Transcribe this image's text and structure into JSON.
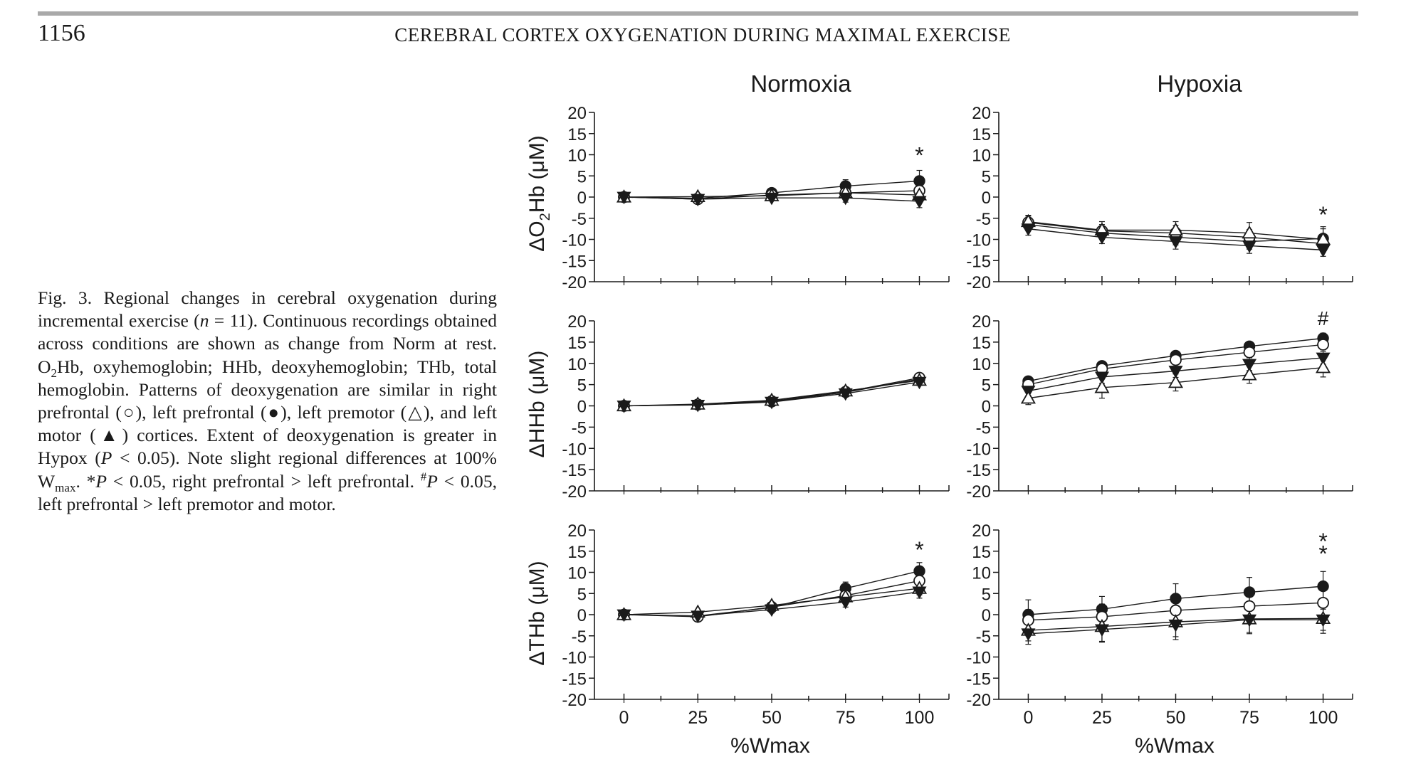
{
  "header": {
    "page_number": "1156",
    "running_title": "CEREBRAL CORTEX OXYGENATION DURING MAXIMAL EXERCISE"
  },
  "caption": {
    "label": "Fig. 3.",
    "text_1": " Regional changes in cerebral oxygenation during incremental exercise (",
    "n_var": "n",
    "text_2": " = 11). Continuous recordings obtained across conditions are shown as change from Norm at rest. O",
    "sub_2": "2",
    "text_3": "Hb, oxyhemoglobin; HHb, deoxyhemoglobin; THb, total hemoglobin. Patterns of deoxygenation are similar in right prefrontal (○), left prefrontal (●), left premotor (△), and left motor (▲) cortices. Extent of deoxygenation is greater in Hypox (",
    "p_var_1": "P",
    "text_4": " < 0.05). Note slight regional differences at 100% W",
    "sub_max": "max",
    "text_5": ". *",
    "p_var_2": "P",
    "text_6": " < 0.05, right prefrontal > left prefrontal. ",
    "sup_hash": "#",
    "p_var_3": "P",
    "text_7": " < 0.05, left prefrontal > left premotor and motor."
  },
  "figure": {
    "column_titles": [
      "Normoxia",
      "Hypoxia"
    ],
    "row_labels": [
      {
        "delta": "Δ",
        "pre": "O",
        "sub": "2",
        "post": "Hb (μM)"
      },
      {
        "delta": "Δ",
        "pre": "HHb (μM)",
        "sub": "",
        "post": ""
      },
      {
        "delta": "Δ",
        "pre": "THb (μM)",
        "sub": "",
        "post": ""
      }
    ],
    "x_axis_label": "%Wmax",
    "series_legend": [
      {
        "name": "right prefrontal",
        "marker": "circle-open"
      },
      {
        "name": "left prefrontal",
        "marker": "circle-filled"
      },
      {
        "name": "left premotor",
        "marker": "triangle-open"
      },
      {
        "name": "left motor",
        "marker": "triangle-filled"
      }
    ]
  },
  "chart_data": [
    {
      "type": "line",
      "panel": "Normoxia ΔO2Hb",
      "title": "Normoxia",
      "xlabel": "",
      "ylabel": "ΔO2Hb (μM)",
      "x": [
        0,
        25,
        50,
        75,
        100
      ],
      "xlim": [
        -10,
        110
      ],
      "ylim": [
        -20,
        20
      ],
      "yticks": [
        20,
        15,
        10,
        5,
        0,
        -5,
        -10,
        -15,
        -20
      ],
      "xticks": [
        0,
        25,
        50,
        75,
        100
      ],
      "annotations": [
        {
          "text": "*",
          "x": 100,
          "y": 10
        }
      ],
      "series": [
        {
          "name": "left prefrontal",
          "marker": "circle-filled",
          "values": [
            0,
            -0.3,
            1.0,
            2.6,
            3.8
          ],
          "err": [
            0.5,
            0.6,
            0.8,
            1.5,
            2.5
          ]
        },
        {
          "name": "right prefrontal",
          "marker": "circle-open",
          "values": [
            0,
            -0.5,
            0.5,
            1.0,
            1.5
          ],
          "err": [
            0.5,
            0.6,
            0.7,
            1.2,
            1.8
          ]
        },
        {
          "name": "left premotor",
          "marker": "triangle-open",
          "values": [
            0,
            0.1,
            0.3,
            1.0,
            0.5
          ],
          "err": [
            0.4,
            0.5,
            0.6,
            1.0,
            1.5
          ]
        },
        {
          "name": "left motor",
          "marker": "triangle-filled",
          "values": [
            0,
            -0.5,
            -0.2,
            -0.2,
            -1.0
          ],
          "err": [
            0.4,
            0.5,
            0.6,
            1.0,
            1.5
          ]
        }
      ]
    },
    {
      "type": "line",
      "panel": "Hypoxia ΔO2Hb",
      "title": "Hypoxia",
      "xlabel": "",
      "ylabel": "",
      "x": [
        0,
        25,
        50,
        75,
        100
      ],
      "xlim": [
        -10,
        110
      ],
      "ylim": [
        -20,
        20
      ],
      "yticks": [
        20,
        15,
        10,
        5,
        0,
        -5,
        -10,
        -15,
        -20
      ],
      "xticks": [
        0,
        25,
        50,
        75,
        100
      ],
      "annotations": [
        {
          "text": "*",
          "x": 100,
          "y": -4
        }
      ],
      "series": [
        {
          "name": "left prefrontal",
          "marker": "circle-filled",
          "values": [
            -6.5,
            -8.5,
            -9.5,
            -10.5,
            -9.8
          ],
          "err": [
            1.5,
            1.5,
            1.8,
            1.8,
            2.8
          ]
        },
        {
          "name": "right prefrontal",
          "marker": "circle-open",
          "values": [
            -6.0,
            -8.0,
            -8.5,
            -9.5,
            -11.0
          ],
          "err": [
            1.5,
            1.5,
            1.8,
            1.8,
            2.0
          ]
        },
        {
          "name": "left premotor",
          "marker": "triangle-open",
          "values": [
            -5.8,
            -7.8,
            -7.8,
            -8.5,
            -10.0
          ],
          "err": [
            1.5,
            2.0,
            2.0,
            2.5,
            2.5
          ]
        },
        {
          "name": "left motor",
          "marker": "triangle-filled",
          "values": [
            -7.5,
            -9.5,
            -10.5,
            -11.5,
            -12.5
          ],
          "err": [
            1.5,
            1.5,
            1.8,
            1.8,
            1.5
          ]
        }
      ]
    },
    {
      "type": "line",
      "panel": "Normoxia ΔHHb",
      "title": "",
      "xlabel": "",
      "ylabel": "ΔHHb (μM)",
      "x": [
        0,
        25,
        50,
        75,
        100
      ],
      "xlim": [
        -10,
        110
      ],
      "ylim": [
        -20,
        20
      ],
      "yticks": [
        20,
        15,
        10,
        5,
        0,
        -5,
        -10,
        -15,
        -20
      ],
      "xticks": [
        0,
        25,
        50,
        75,
        100
      ],
      "annotations": [],
      "series": [
        {
          "name": "left prefrontal",
          "marker": "circle-filled",
          "values": [
            0,
            0.3,
            1.0,
            3.2,
            6.3
          ],
          "err": [
            0.4,
            0.4,
            0.5,
            0.6,
            0.8
          ]
        },
        {
          "name": "right prefrontal",
          "marker": "circle-open",
          "values": [
            0,
            0.3,
            1.1,
            3.3,
            6.6
          ],
          "err": [
            0.4,
            0.4,
            0.5,
            0.6,
            0.8
          ]
        },
        {
          "name": "left premotor",
          "marker": "triangle-open",
          "values": [
            0,
            0.4,
            1.3,
            3.5,
            6.0
          ],
          "err": [
            0.4,
            0.4,
            0.5,
            0.6,
            0.8
          ]
        },
        {
          "name": "left motor",
          "marker": "triangle-filled",
          "values": [
            0,
            0.2,
            0.9,
            2.9,
            5.6
          ],
          "err": [
            0.4,
            0.4,
            0.5,
            0.6,
            0.8
          ]
        }
      ]
    },
    {
      "type": "line",
      "panel": "Hypoxia ΔHHb",
      "title": "",
      "xlabel": "",
      "ylabel": "",
      "x": [
        0,
        25,
        50,
        75,
        100
      ],
      "xlim": [
        -10,
        110
      ],
      "ylim": [
        -20,
        20
      ],
      "yticks": [
        20,
        15,
        10,
        5,
        0,
        -5,
        -10,
        -15,
        -20
      ],
      "xticks": [
        0,
        25,
        50,
        75,
        100
      ],
      "annotations": [
        {
          "text": "#",
          "x": 100,
          "y": 21
        }
      ],
      "series": [
        {
          "name": "left prefrontal",
          "marker": "circle-filled",
          "values": [
            5.8,
            9.4,
            11.8,
            14.0,
            15.9
          ],
          "err": [
            1.0,
            1.0,
            1.0,
            1.0,
            1.2
          ]
        },
        {
          "name": "right prefrontal",
          "marker": "circle-open",
          "values": [
            5.0,
            8.7,
            10.8,
            12.6,
            14.4
          ],
          "err": [
            1.0,
            1.0,
            1.0,
            1.2,
            1.2
          ]
        },
        {
          "name": "left motor",
          "marker": "triangle-filled",
          "values": [
            3.5,
            6.8,
            8.2,
            9.8,
            11.3
          ],
          "err": [
            1.2,
            1.5,
            1.5,
            1.5,
            1.5
          ]
        },
        {
          "name": "left premotor",
          "marker": "triangle-open",
          "values": [
            1.8,
            4.3,
            5.5,
            7.3,
            9.0
          ],
          "err": [
            1.5,
            2.5,
            2.0,
            2.0,
            2.2
          ]
        }
      ]
    },
    {
      "type": "line",
      "panel": "Normoxia ΔTHb",
      "title": "",
      "xlabel": "%Wmax",
      "ylabel": "ΔTHb (μM)",
      "x": [
        0,
        25,
        50,
        75,
        100
      ],
      "xlim": [
        -10,
        110
      ],
      "ylim": [
        -20,
        20
      ],
      "yticks": [
        20,
        15,
        10,
        5,
        0,
        -5,
        -10,
        -15,
        -20
      ],
      "xticks": [
        0,
        25,
        50,
        75,
        100
      ],
      "annotations": [
        {
          "text": "*",
          "x": 100,
          "y": 15.5
        }
      ],
      "series": [
        {
          "name": "left prefrontal",
          "marker": "circle-filled",
          "values": [
            0,
            -0.3,
            1.7,
            6.2,
            10.3
          ],
          "err": [
            0.5,
            0.6,
            0.8,
            1.5,
            2.0
          ]
        },
        {
          "name": "right prefrontal",
          "marker": "circle-open",
          "values": [
            0,
            -0.5,
            1.8,
            4.5,
            8.0
          ],
          "err": [
            0.5,
            0.6,
            0.8,
            1.5,
            1.8
          ]
        },
        {
          "name": "left premotor",
          "marker": "triangle-open",
          "values": [
            0,
            0.6,
            2.2,
            4.2,
            6.2
          ],
          "err": [
            0.5,
            0.6,
            0.8,
            1.2,
            1.5
          ]
        },
        {
          "name": "left motor",
          "marker": "triangle-filled",
          "values": [
            0,
            -0.3,
            1.2,
            3.0,
            5.4
          ],
          "err": [
            0.5,
            0.6,
            0.8,
            1.2,
            1.5
          ]
        }
      ]
    },
    {
      "type": "line",
      "panel": "Hypoxia ΔTHb",
      "title": "",
      "xlabel": "%Wmax",
      "ylabel": "",
      "x": [
        0,
        25,
        50,
        75,
        100
      ],
      "xlim": [
        -10,
        110
      ],
      "ylim": [
        -20,
        20
      ],
      "yticks": [
        20,
        15,
        10,
        5,
        0,
        -5,
        -10,
        -15,
        -20
      ],
      "xticks": [
        0,
        25,
        50,
        75,
        100
      ],
      "annotations": [
        {
          "text": "*",
          "x": 100,
          "y": 17.5
        },
        {
          "text": "*",
          "x": 100,
          "y": 14.5
        }
      ],
      "series": [
        {
          "name": "left prefrontal",
          "marker": "circle-filled",
          "values": [
            0,
            1.3,
            3.8,
            5.3,
            6.7
          ],
          "err": [
            3.5,
            3.0,
            3.5,
            3.5,
            3.5
          ]
        },
        {
          "name": "right prefrontal",
          "marker": "circle-open",
          "values": [
            -1.3,
            -0.5,
            1.0,
            2.0,
            2.8
          ],
          "err": [
            2.5,
            3.0,
            3.5,
            3.5,
            3.5
          ]
        },
        {
          "name": "left premotor",
          "marker": "triangle-open",
          "values": [
            -3.7,
            -2.8,
            -1.7,
            -1.0,
            -0.9
          ],
          "err": [
            2.5,
            3.5,
            3.5,
            3.5,
            3.5
          ]
        },
        {
          "name": "left motor",
          "marker": "triangle-filled",
          "values": [
            -4.5,
            -3.5,
            -2.4,
            -1.2,
            -1.2
          ],
          "err": [
            2.5,
            3.0,
            3.5,
            3.0,
            2.5
          ]
        }
      ]
    }
  ]
}
